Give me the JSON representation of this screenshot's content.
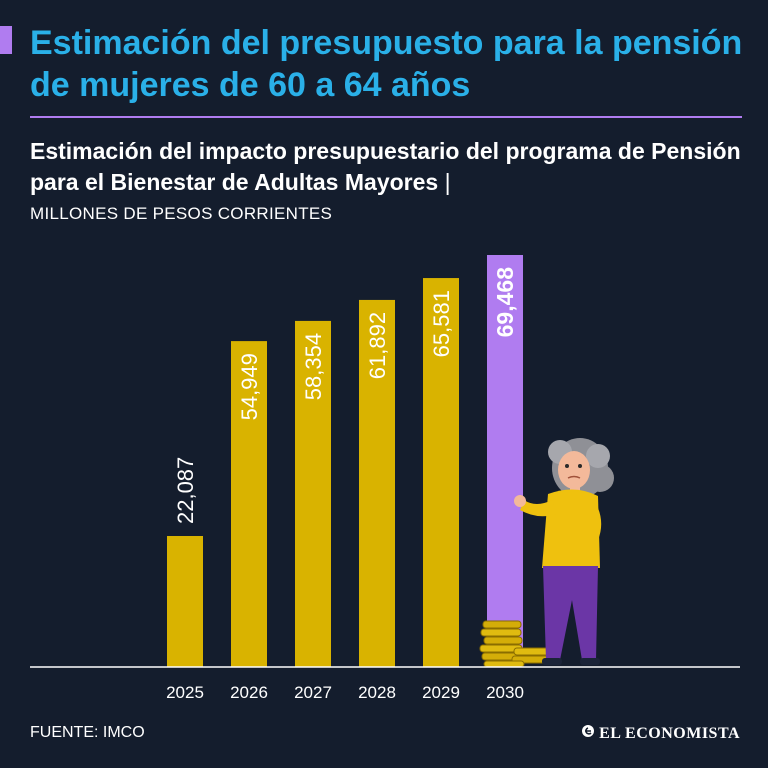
{
  "header": {
    "title": "Estimación del presupuesto para la pensión de mujeres de 60 a 64 años",
    "subtitle": "Estimación del impacto presupuestario del programa de Pensión para el Bienestar de Adultas Mayores",
    "subtitle_separator": "|",
    "unit": "MILLONES DE PESOS CORRIENTES"
  },
  "footer": {
    "source": "FUENTE: IMCO",
    "brand": "EL ECONOMISTA"
  },
  "colors": {
    "background": "#141d2d",
    "title": "#2ab0e8",
    "accent": "#b07cf0",
    "bar": "#d9b300",
    "highlight_bar": "#b07cf0"
  },
  "chart_data": {
    "type": "bar",
    "categories": [
      "2025",
      "2026",
      "2027",
      "2028",
      "2029",
      "2030"
    ],
    "values": [
      22087,
      54949,
      58354,
      61892,
      65581,
      69468
    ],
    "labels": [
      "22,087",
      "54,949",
      "58,354",
      "61,892",
      "65,581",
      "69,468"
    ],
    "highlight_index": 5,
    "ylim": [
      0,
      69468
    ],
    "grid": false,
    "legend": "none",
    "xlabel": "",
    "ylabel": ""
  }
}
